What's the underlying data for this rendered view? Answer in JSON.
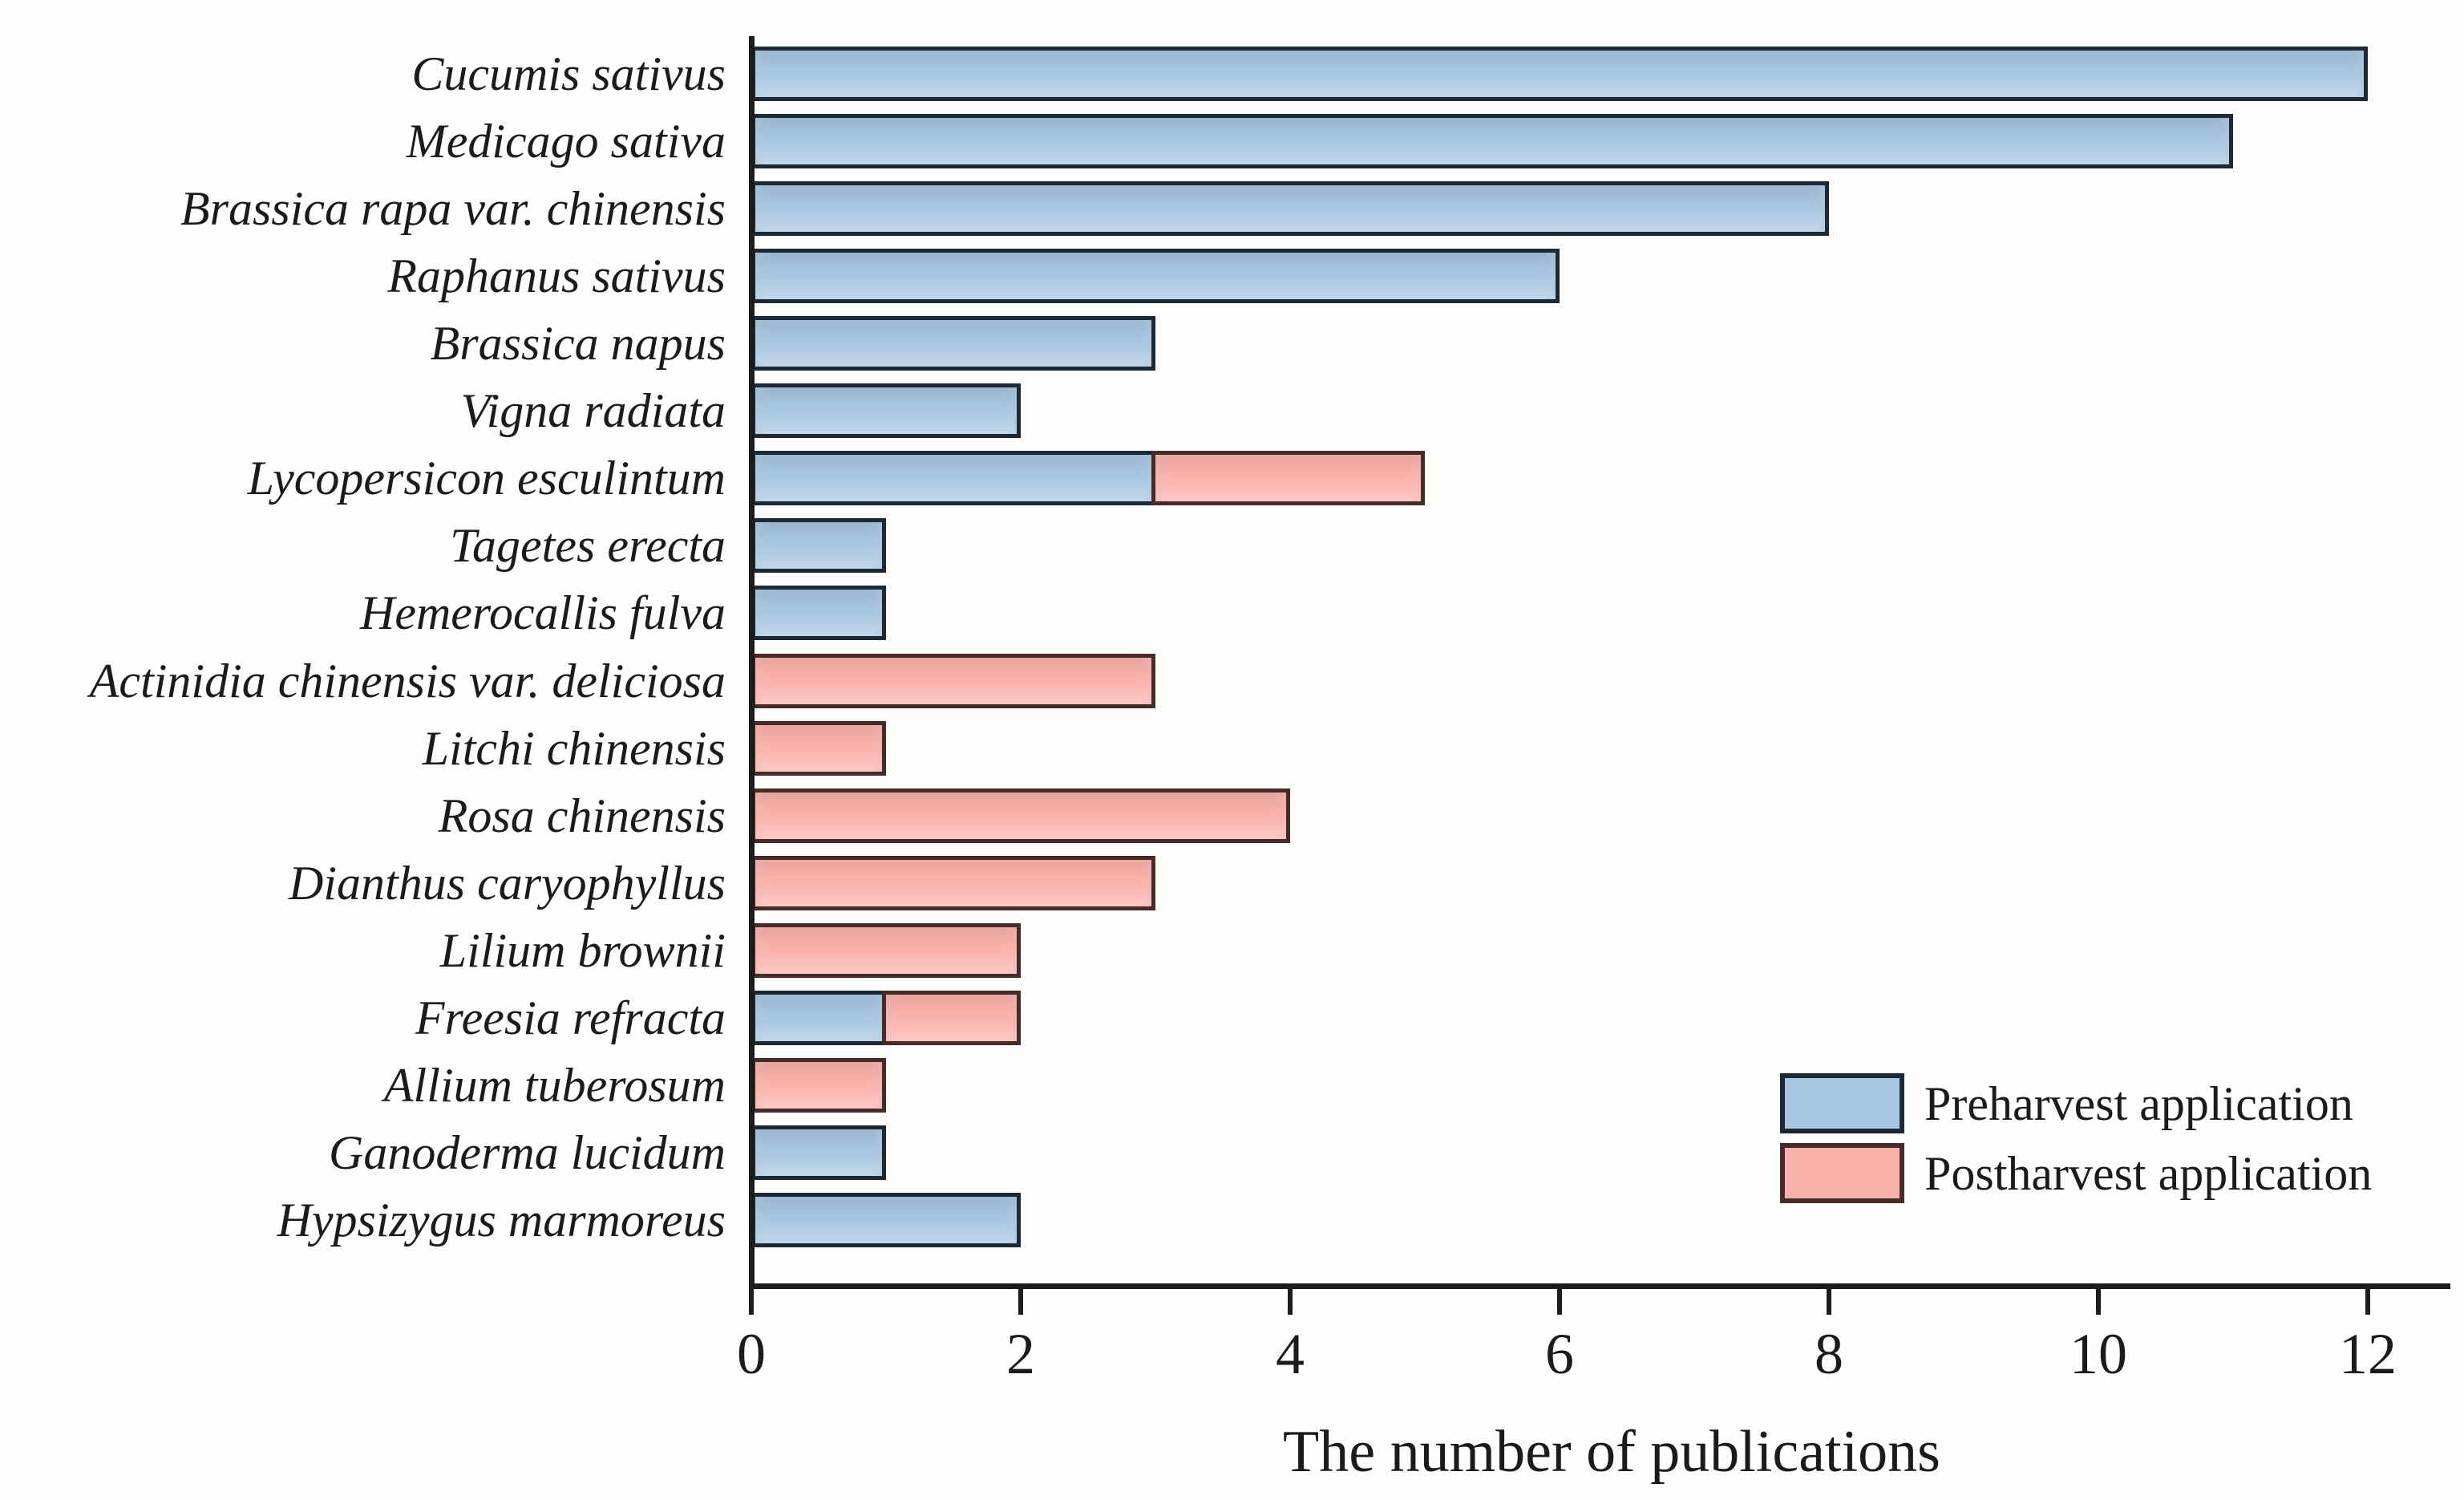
{
  "chart_data": {
    "type": "bar",
    "orientation": "horizontal",
    "stacked": true,
    "title": "",
    "xlabel": "The number of publications",
    "x_ticks": [
      0,
      2,
      4,
      6,
      8,
      10,
      12
    ],
    "xlim": [
      0,
      12.6
    ],
    "grid": false,
    "legend_position": "lower right inside plot",
    "categories": [
      "Cucumis sativus",
      "Medicago sativa",
      "Brassica rapa var. chinensis",
      "Raphanus sativus",
      "Brassica napus",
      "Vigna radiata",
      "Lycopersicon esculintum",
      "Tagetes erecta",
      "Hemerocallis fulva",
      "Actinidia chinensis var. deliciosa",
      "Litchi chinensis",
      "Rosa chinensis",
      "Dianthus caryophyllus",
      "Lilium brownii",
      "Freesia refracta",
      "Allium tuberosum",
      "Ganoderma lucidum",
      "Hypsizygus marmoreus"
    ],
    "series": [
      {
        "name": "Preharvest application",
        "values": [
          12,
          11,
          8,
          6,
          3,
          2,
          3,
          1,
          1,
          0,
          0,
          0,
          0,
          0,
          1,
          0,
          1,
          2
        ]
      },
      {
        "name": "Postharvest application",
        "values": [
          0,
          0,
          0,
          0,
          0,
          0,
          2,
          0,
          0,
          3,
          1,
          4,
          3,
          2,
          1,
          1,
          0,
          0
        ]
      }
    ],
    "legend": [
      {
        "name": "Preharvest application"
      },
      {
        "name": "Postharvest application"
      }
    ]
  },
  "colors": {
    "background": "#fdfdfc",
    "axis": "#1c1c1c",
    "text": "#1b1b1b",
    "preharvest_fill": "#a7c6e1",
    "preharvest_edge": "#1c2a38",
    "postharvest_fill": "#fbb1ab",
    "postharvest_edge": "#472b29"
  }
}
